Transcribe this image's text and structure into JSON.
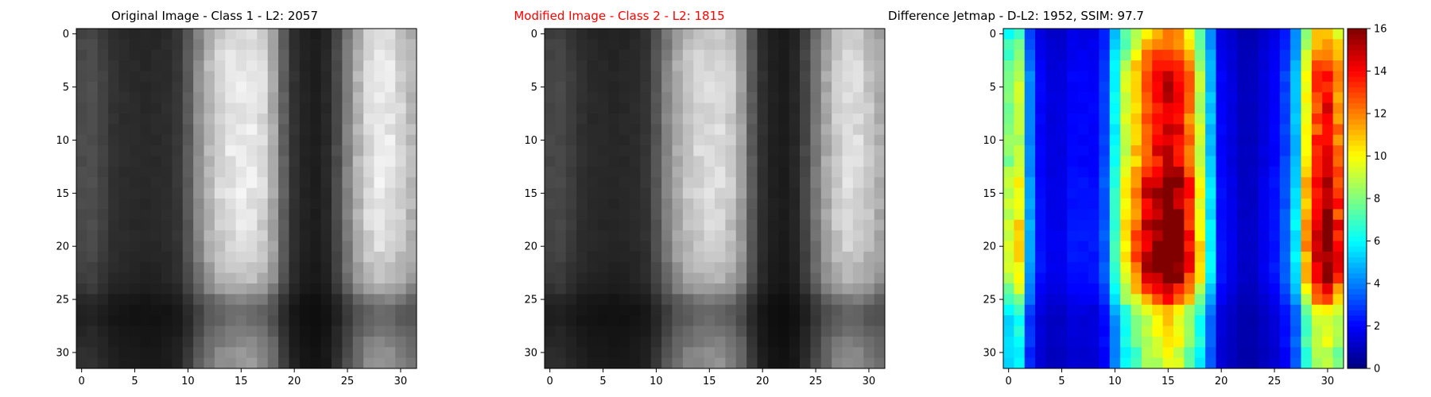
{
  "panels": [
    {
      "title": "Original Image - Class 1 - L2: 2057",
      "title_color": "#000000"
    },
    {
      "title": "Modified Image - Class 2 - L2: 1815",
      "title_color": "#ff0000"
    },
    {
      "title": "Difference Jetmap - D-L2: 1952, SSIM: 97.7",
      "title_color": "#000000"
    }
  ],
  "chart_data": [
    {
      "type": "heatmap",
      "title": "Original Image - Class 1 - L2: 2057",
      "colormap": "gray",
      "grid_size": [
        32,
        32
      ],
      "xlim": [
        -0.5,
        31.5
      ],
      "ylim": [
        31.5,
        -0.5
      ],
      "xticks": [
        0,
        5,
        10,
        15,
        20,
        25,
        30
      ],
      "yticks": [
        0,
        5,
        10,
        15,
        20,
        25,
        30
      ],
      "column_profile": [
        75,
        78,
        65,
        50,
        45,
        42,
        40,
        42,
        45,
        55,
        90,
        140,
        185,
        215,
        230,
        235,
        232,
        215,
        170,
        95,
        50,
        35,
        30,
        40,
        75,
        130,
        180,
        220,
        235,
        230,
        210,
        185
      ],
      "row_modulation": [
        0.92,
        0.95,
        0.97,
        0.99,
        1.0,
        1.0,
        1.0,
        1.0,
        1.0,
        1.0,
        1.0,
        1.0,
        1.0,
        1.0,
        1.0,
        0.99,
        0.98,
        0.97,
        0.96,
        0.95,
        0.93,
        0.9,
        0.86,
        0.82,
        0.72,
        0.55,
        0.45,
        0.45,
        0.5,
        0.55,
        0.6,
        0.62
      ]
    },
    {
      "type": "heatmap",
      "title": "Modified Image - Class 2 - L2: 1815",
      "colormap": "gray",
      "grid_size": [
        32,
        32
      ],
      "xlim": [
        -0.5,
        31.5
      ],
      "ylim": [
        31.5,
        -0.5
      ],
      "xticks": [
        0,
        5,
        10,
        15,
        20,
        25,
        30
      ],
      "yticks": [
        0,
        5,
        10,
        15,
        20,
        25,
        30
      ],
      "column_profile": [
        70,
        72,
        60,
        48,
        42,
        40,
        38,
        40,
        43,
        52,
        85,
        130,
        172,
        200,
        215,
        220,
        218,
        200,
        160,
        90,
        48,
        32,
        28,
        38,
        70,
        120,
        168,
        205,
        222,
        218,
        198,
        175
      ],
      "row_modulation": [
        0.9,
        0.93,
        0.96,
        0.98,
        1.0,
        1.0,
        1.0,
        1.0,
        1.0,
        1.0,
        1.0,
        1.0,
        1.0,
        1.0,
        1.0,
        0.99,
        0.98,
        0.97,
        0.96,
        0.95,
        0.93,
        0.9,
        0.86,
        0.82,
        0.72,
        0.55,
        0.45,
        0.45,
        0.5,
        0.55,
        0.6,
        0.62
      ]
    },
    {
      "type": "heatmap",
      "title": "Difference Jetmap - D-L2: 1952, SSIM: 97.7",
      "colormap": "jet",
      "grid_size": [
        32,
        32
      ],
      "xlim": [
        -0.5,
        31.5
      ],
      "ylim": [
        31.5,
        -0.5
      ],
      "xticks": [
        0,
        5,
        10,
        15,
        20,
        25,
        30
      ],
      "yticks": [
        0,
        5,
        10,
        15,
        20,
        25,
        30
      ],
      "colorbar": {
        "range": [
          0,
          16
        ],
        "ticks": [
          0,
          2,
          4,
          6,
          8,
          10,
          12,
          14,
          16
        ]
      },
      "column_profile": [
        8,
        9,
        4,
        2,
        1.5,
        1.5,
        2,
        2,
        2,
        3,
        6,
        9,
        11,
        13,
        14,
        15,
        14,
        12,
        9,
        5,
        2,
        1.5,
        1,
        1,
        1.5,
        2,
        3,
        5,
        10,
        13,
        14,
        12
      ],
      "row_modulation": [
        0.8,
        0.85,
        0.9,
        0.95,
        1.0,
        1.0,
        1.0,
        1.0,
        1.0,
        1.0,
        1.0,
        1.0,
        1.0,
        1.05,
        1.1,
        1.1,
        1.1,
        1.1,
        1.15,
        1.15,
        1.15,
        1.15,
        1.15,
        1.1,
        1.0,
        0.9,
        0.75,
        0.7,
        0.7,
        0.7,
        0.65,
        0.65
      ]
    }
  ]
}
